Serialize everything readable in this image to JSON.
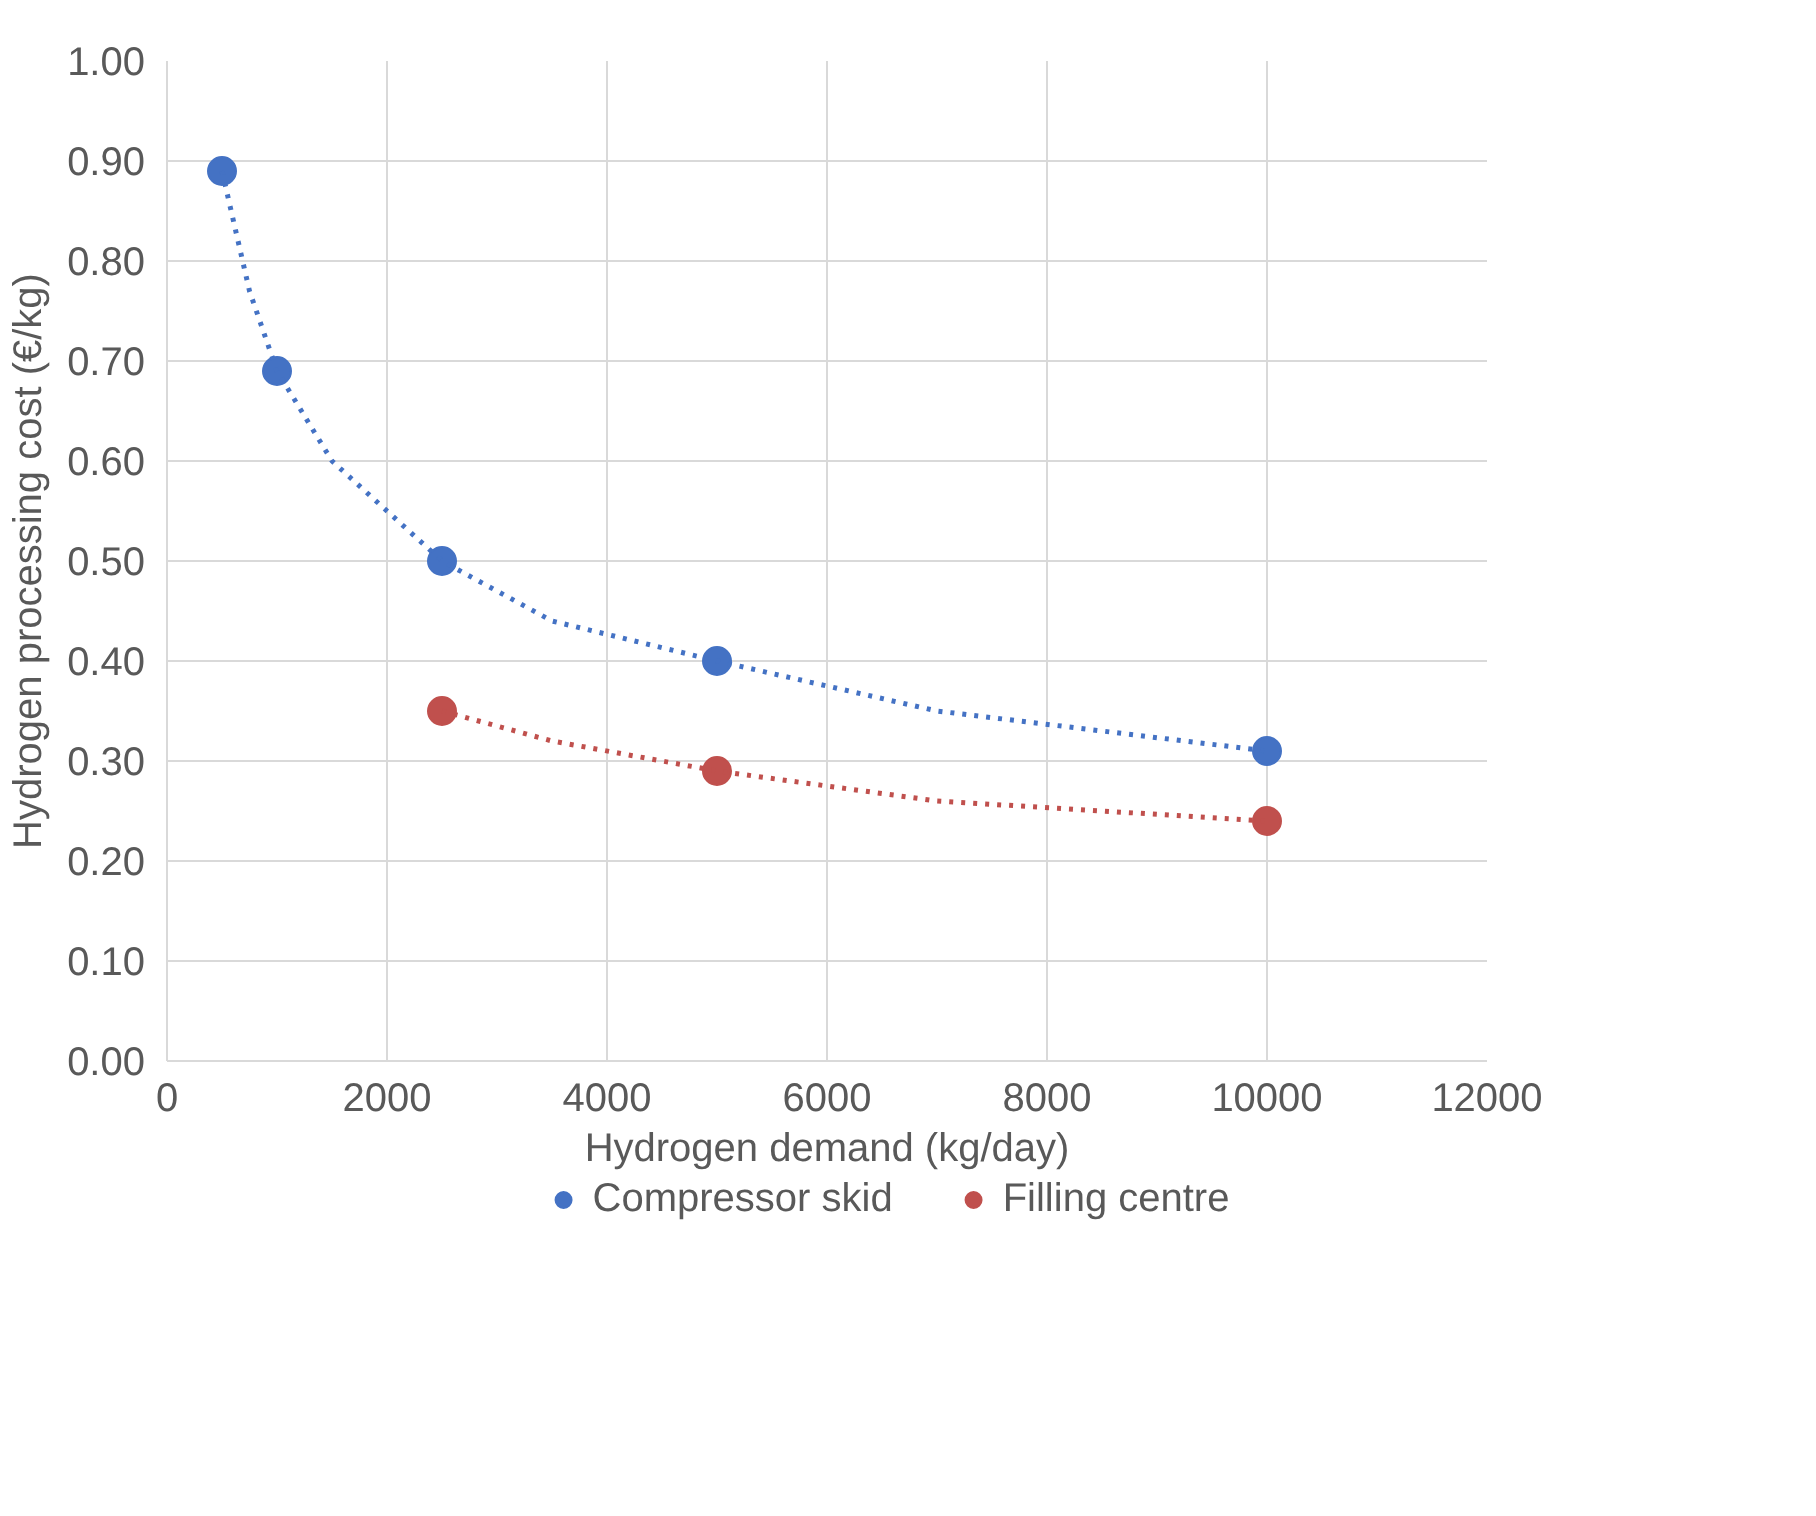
{
  "chart_data": {
    "type": "scatter",
    "xlabel": "Hydrogen demand (kg/day)",
    "ylabel": "Hydrogen processing cost (€/kg)",
    "xlim": [
      0,
      12000
    ],
    "xticks": [
      0,
      2000,
      4000,
      6000,
      8000,
      10000,
      12000
    ],
    "ylim": [
      0,
      1
    ],
    "yticks": [
      {
        "value": 0,
        "label": "0.00"
      },
      {
        "value": 0.1,
        "label": "0.10"
      },
      {
        "value": 0.2,
        "label": "0.20"
      },
      {
        "value": 0.3,
        "label": "0.30"
      },
      {
        "value": 0.4,
        "label": "0.40"
      },
      {
        "value": 0.5,
        "label": "0.50"
      },
      {
        "value": 0.6,
        "label": "0.60"
      },
      {
        "value": 0.7,
        "label": "0.70"
      },
      {
        "value": 0.8,
        "label": "0.80"
      },
      {
        "value": 0.9,
        "label": "0.90"
      },
      {
        "value": 1,
        "label": "1.00"
      }
    ],
    "grid": true,
    "legend": "bottom",
    "marker": "circle",
    "series": [
      {
        "name": "Compressor skid",
        "color": "#4472c4",
        "x": [
          500,
          1000,
          2500,
          5000,
          10000
        ],
        "values": [
          0.89,
          0.69,
          0.5,
          0.4,
          0.31
        ]
      },
      {
        "name": "Filling centre",
        "color": "#c0504d",
        "x": [
          2500,
          5000,
          10000
        ],
        "values": [
          0.35,
          0.29,
          0.24
        ]
      },
      {
        "type": "line",
        "line_style": "dotted",
        "marker": "none",
        "color": "#4472c4",
        "x": [
          500,
          750,
          1000,
          1500,
          2500,
          3500,
          5000,
          7000,
          10000
        ],
        "values": [
          0.89,
          0.77,
          0.69,
          0.6,
          0.5,
          0.44,
          0.4,
          0.35,
          0.31
        ]
      },
      {
        "type": "line",
        "line_style": "dotted",
        "marker": "none",
        "color": "#c0504d",
        "x": [
          2500,
          3500,
          5000,
          7000,
          10000
        ],
        "values": [
          0.35,
          0.32,
          0.29,
          0.26,
          0.24
        ]
      }
    ]
  }
}
